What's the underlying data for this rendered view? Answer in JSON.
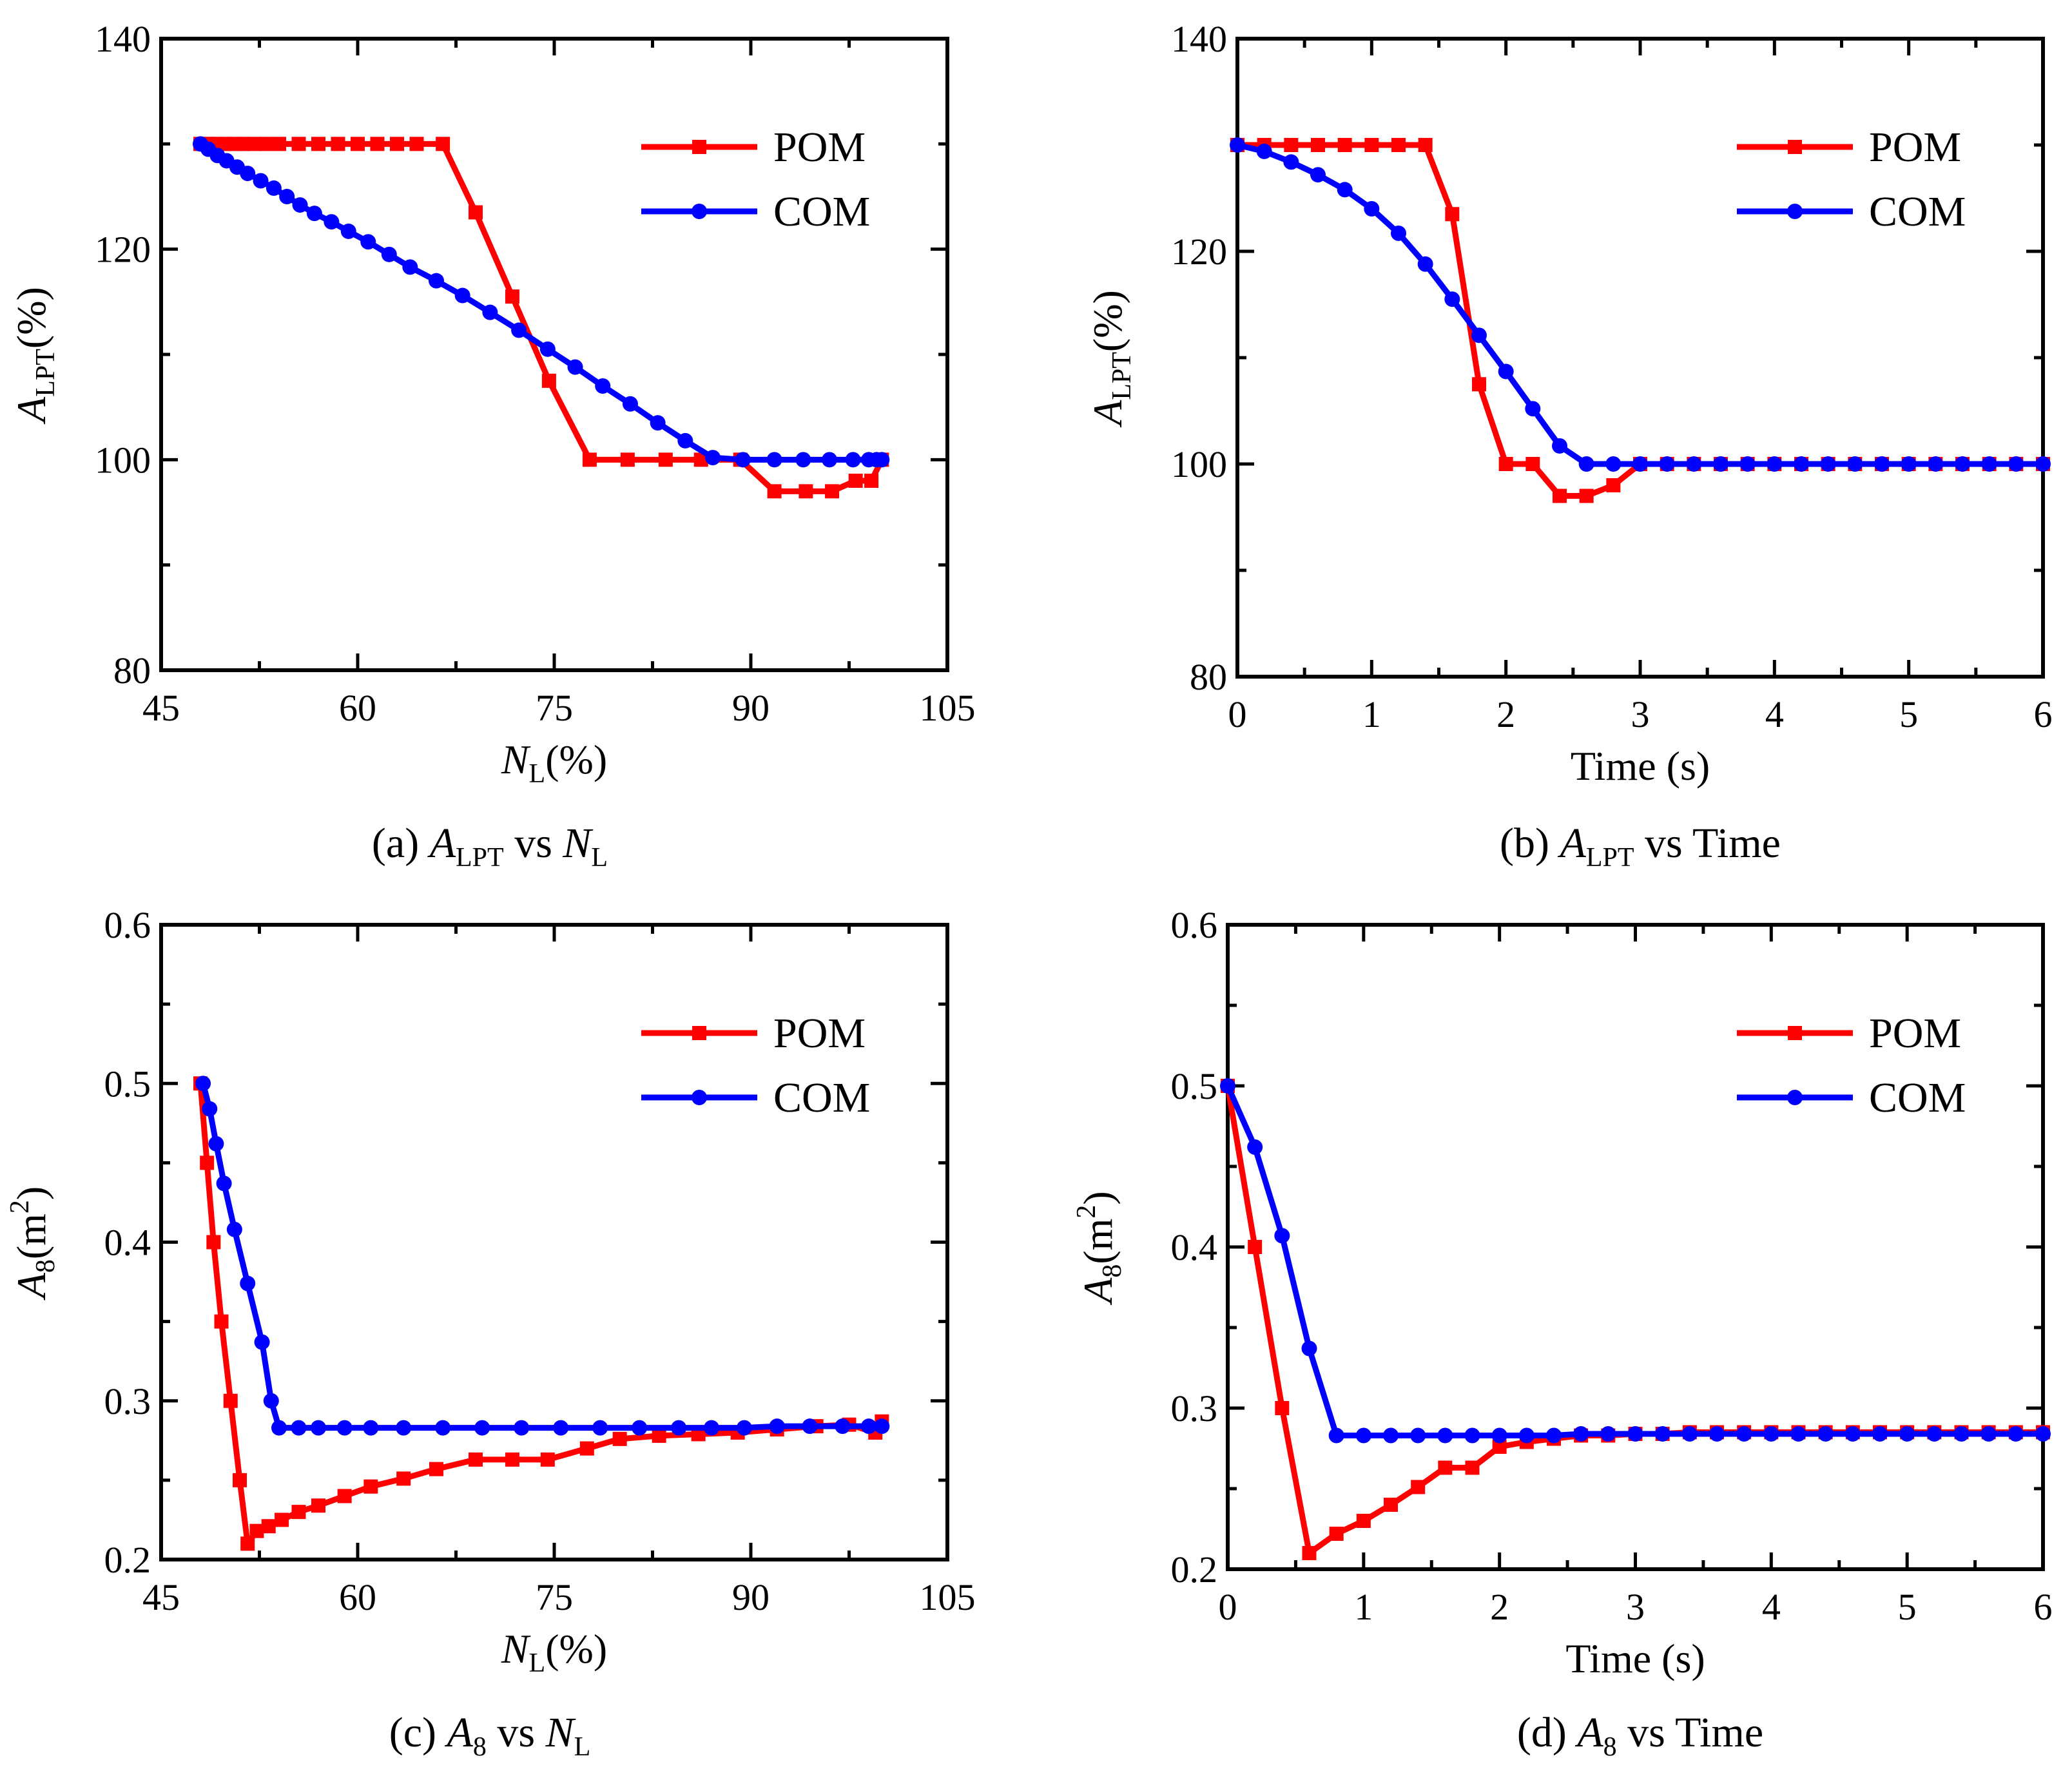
{
  "colors": {
    "pom": "#ff0000",
    "com": "#0000ff",
    "axis": "#000000"
  },
  "chart_data": [
    {
      "id": "a",
      "type": "line",
      "caption": {
        "tag": "(a)",
        "y_var": "A",
        "y_sub": "LPT",
        "vs": "vs",
        "x_var": "N",
        "x_sub": "L"
      },
      "ylabel": {
        "var": "A",
        "sub": "LPT",
        "unit": "(%)"
      },
      "xlabel": {
        "var": "N",
        "sub": "L",
        "unit": "(%)"
      },
      "xlim": [
        45,
        105
      ],
      "ylim": [
        80,
        140
      ],
      "xticks": [
        45,
        60,
        75,
        90,
        105
      ],
      "yticks": [
        80,
        100,
        120,
        140
      ],
      "xtick_labels": [
        "45",
        "60",
        "75",
        "90",
        "105"
      ],
      "ytick_labels": [
        "80",
        "100",
        "120",
        "140"
      ],
      "legend": "top-right",
      "series": [
        {
          "name": "POM",
          "color": "#ff0000",
          "marker": "square",
          "x": [
            48,
            48.6,
            49.2,
            49.9,
            50.6,
            51.3,
            52.1,
            53,
            54,
            55.5,
            57,
            58.5,
            60,
            61.5,
            63,
            64.5,
            66.5,
            69,
            71.8,
            74.6,
            77.7,
            80.6,
            83.5,
            86.2,
            89.2,
            91.8,
            94.2,
            96.2,
            98,
            99.2,
            100
          ],
          "y": [
            130,
            130,
            130,
            130,
            130,
            130,
            130,
            130,
            130,
            130,
            130,
            130,
            130,
            130,
            130,
            130,
            130,
            123.5,
            115.5,
            107.5,
            100,
            100,
            100,
            100,
            100,
            97,
            97,
            97,
            98,
            98,
            100
          ]
        },
        {
          "name": "COM",
          "color": "#0000ff",
          "marker": "circle",
          "x": [
            48,
            48.6,
            49.3,
            50,
            50.8,
            51.6,
            52.6,
            53.6,
            54.6,
            55.6,
            56.7,
            58,
            59.3,
            60.8,
            62.4,
            64,
            66,
            68,
            70.1,
            72.3,
            74.5,
            76.6,
            78.7,
            80.8,
            82.9,
            85,
            87.1,
            89.4,
            91.8,
            94,
            96,
            97.8,
            99,
            99.6,
            100
          ],
          "y": [
            130,
            129.5,
            128.9,
            128.4,
            127.8,
            127.2,
            126.5,
            125.8,
            125,
            124.2,
            123.4,
            122.6,
            121.7,
            120.7,
            119.5,
            118.3,
            117,
            115.6,
            114,
            112.3,
            110.5,
            108.8,
            107,
            105.3,
            103.5,
            101.8,
            100.2,
            100,
            100,
            100,
            100,
            100,
            100,
            100,
            100
          ]
        }
      ]
    },
    {
      "id": "b",
      "type": "line",
      "caption": {
        "tag": "(b)",
        "y_var": "A",
        "y_sub": "LPT",
        "vs": "vs Time",
        "x_var": "",
        "x_sub": ""
      },
      "ylabel": {
        "var": "A",
        "sub": "LPT",
        "unit": "(%)"
      },
      "xlabel": {
        "var": "Time (s)",
        "sub": "",
        "unit": ""
      },
      "xlim": [
        0,
        6
      ],
      "ylim": [
        80,
        140
      ],
      "xticks": [
        0,
        1,
        2,
        3,
        4,
        5,
        6
      ],
      "yticks": [
        80,
        100,
        120,
        140
      ],
      "xtick_labels": [
        "0",
        "1",
        "2",
        "3",
        "4",
        "5",
        "6"
      ],
      "ytick_labels": [
        "80",
        "100",
        "120",
        "140"
      ],
      "legend": "top-right",
      "series": [
        {
          "name": "POM",
          "color": "#ff0000",
          "marker": "square",
          "x": [
            0,
            0.2,
            0.4,
            0.6,
            0.8,
            1,
            1.2,
            1.4,
            1.6,
            1.8,
            2,
            2.2,
            2.4,
            2.6,
            2.8,
            3,
            3.2,
            3.4,
            3.6,
            3.8,
            4,
            4.2,
            4.4,
            4.6,
            4.8,
            5,
            5.2,
            5.4,
            5.6,
            5.8,
            6
          ],
          "y": [
            130,
            130,
            130,
            130,
            130,
            130,
            130,
            130,
            123.5,
            107.5,
            100,
            100,
            97,
            97,
            98,
            100,
            100,
            100,
            100,
            100,
            100,
            100,
            100,
            100,
            100,
            100,
            100,
            100,
            100,
            100,
            100
          ]
        },
        {
          "name": "COM",
          "color": "#0000ff",
          "marker": "circle",
          "x": [
            0,
            0.2,
            0.4,
            0.6,
            0.8,
            1,
            1.2,
            1.4,
            1.6,
            1.8,
            2,
            2.2,
            2.4,
            2.6,
            2.8,
            3,
            3.2,
            3.4,
            3.6,
            3.8,
            4,
            4.2,
            4.4,
            4.6,
            4.8,
            5,
            5.2,
            5.4,
            5.6,
            5.8,
            6
          ],
          "y": [
            130,
            129.4,
            128.4,
            127.2,
            125.8,
            124,
            121.7,
            118.8,
            115.5,
            112.1,
            108.7,
            105.2,
            101.7,
            100,
            100,
            100,
            100,
            100,
            100,
            100,
            100,
            100,
            100,
            100,
            100,
            100,
            100,
            100,
            100,
            100,
            100
          ]
        }
      ]
    },
    {
      "id": "c",
      "type": "line",
      "caption": {
        "tag": "(c)",
        "y_var": "A",
        "y_sub": "8",
        "vs": "vs",
        "x_var": "N",
        "x_sub": "L"
      },
      "ylabel": {
        "var": "A",
        "sub": "8",
        "unit": "(m",
        "sup": "2",
        "unit_end": ")"
      },
      "xlabel": {
        "var": "N",
        "sub": "L",
        "unit": "(%)"
      },
      "xlim": [
        45,
        105
      ],
      "ylim": [
        0.2,
        0.6
      ],
      "xticks": [
        45,
        60,
        75,
        90,
        105
      ],
      "yticks": [
        0.2,
        0.3,
        0.4,
        0.5,
        0.6
      ],
      "xtick_labels": [
        "45",
        "60",
        "75",
        "90",
        "105"
      ],
      "ytick_labels": [
        "0.2",
        "0.3",
        "0.4",
        "0.5",
        "0.6"
      ],
      "legend": "top-right",
      "series": [
        {
          "name": "POM",
          "color": "#ff0000",
          "marker": "square",
          "x": [
            48,
            48.5,
            49,
            49.6,
            50.3,
            51,
            51.6,
            52.3,
            53.2,
            54.2,
            55.5,
            57,
            59,
            61,
            63.5,
            66,
            69,
            71.8,
            74.5,
            77.5,
            80,
            83,
            86,
            89,
            92,
            95,
            97.5,
            99.5,
            100
          ],
          "y": [
            0.5,
            0.45,
            0.4,
            0.35,
            0.3,
            0.25,
            0.21,
            0.218,
            0.221,
            0.225,
            0.23,
            0.234,
            0.24,
            0.246,
            0.251,
            0.257,
            0.263,
            0.263,
            0.263,
            0.27,
            0.276,
            0.278,
            0.279,
            0.28,
            0.282,
            0.284,
            0.285,
            0.28,
            0.287
          ]
        },
        {
          "name": "COM",
          "color": "#0000ff",
          "marker": "circle",
          "x": [
            48.2,
            48.7,
            49.2,
            49.8,
            50.6,
            51.6,
            52.7,
            53.4,
            54,
            55.5,
            57,
            59,
            61,
            63.5,
            66.5,
            69.5,
            72.5,
            75.5,
            78.5,
            81.5,
            84.5,
            87,
            89.5,
            92,
            94.5,
            97,
            99,
            100
          ],
          "y": [
            0.5,
            0.484,
            0.462,
            0.437,
            0.408,
            0.374,
            0.337,
            0.3,
            0.283,
            0.283,
            0.283,
            0.283,
            0.283,
            0.283,
            0.283,
            0.283,
            0.283,
            0.283,
            0.283,
            0.283,
            0.283,
            0.283,
            0.283,
            0.284,
            0.284,
            0.284,
            0.284,
            0.284
          ]
        }
      ]
    },
    {
      "id": "d",
      "type": "line",
      "caption": {
        "tag": "(d)",
        "y_var": "A",
        "y_sub": "8",
        "vs": "vs Time",
        "x_var": "",
        "x_sub": ""
      },
      "ylabel": {
        "var": "A",
        "sub": "8",
        "unit": "(m",
        "sup": "2",
        "unit_end": ")"
      },
      "xlabel": {
        "var": "Time (s)",
        "sub": "",
        "unit": ""
      },
      "xlim": [
        0,
        6
      ],
      "ylim": [
        0.2,
        0.6
      ],
      "xticks": [
        0,
        1,
        2,
        3,
        4,
        5,
        6
      ],
      "yticks": [
        0.2,
        0.3,
        0.4,
        0.5,
        0.6
      ],
      "xtick_labels": [
        "0",
        "1",
        "2",
        "3",
        "4",
        "5",
        "6"
      ],
      "ytick_labels": [
        "0.2",
        "0.3",
        "0.4",
        "0.5",
        "0.6"
      ],
      "legend": "top-right",
      "series": [
        {
          "name": "POM",
          "color": "#ff0000",
          "marker": "square",
          "x": [
            0,
            0.2,
            0.4,
            0.6,
            0.8,
            1,
            1.2,
            1.4,
            1.6,
            1.8,
            2,
            2.2,
            2.4,
            2.6,
            2.8,
            3,
            3.2,
            3.4,
            3.6,
            3.8,
            4,
            4.2,
            4.4,
            4.6,
            4.8,
            5,
            5.2,
            5.4,
            5.6,
            5.8,
            6
          ],
          "y": [
            0.5,
            0.4,
            0.3,
            0.21,
            0.222,
            0.23,
            0.24,
            0.251,
            0.263,
            0.263,
            0.276,
            0.279,
            0.281,
            0.283,
            0.283,
            0.284,
            0.284,
            0.285,
            0.285,
            0.285,
            0.285,
            0.285,
            0.285,
            0.285,
            0.285,
            0.285,
            0.285,
            0.285,
            0.285,
            0.285,
            0.285
          ]
        },
        {
          "name": "COM",
          "color": "#0000ff",
          "marker": "circle",
          "x": [
            0,
            0.2,
            0.4,
            0.6,
            0.8,
            1,
            1.2,
            1.4,
            1.6,
            1.8,
            2,
            2.2,
            2.4,
            2.6,
            2.8,
            3,
            3.2,
            3.4,
            3.6,
            3.8,
            4,
            4.2,
            4.4,
            4.6,
            4.8,
            5,
            5.2,
            5.4,
            5.6,
            5.8,
            6
          ],
          "y": [
            0.5,
            0.462,
            0.407,
            0.337,
            0.283,
            0.283,
            0.283,
            0.283,
            0.283,
            0.283,
            0.283,
            0.283,
            0.283,
            0.284,
            0.284,
            0.284,
            0.284,
            0.284,
            0.284,
            0.284,
            0.284,
            0.284,
            0.284,
            0.284,
            0.284,
            0.284,
            0.284,
            0.284,
            0.284,
            0.284,
            0.284
          ]
        }
      ]
    }
  ]
}
